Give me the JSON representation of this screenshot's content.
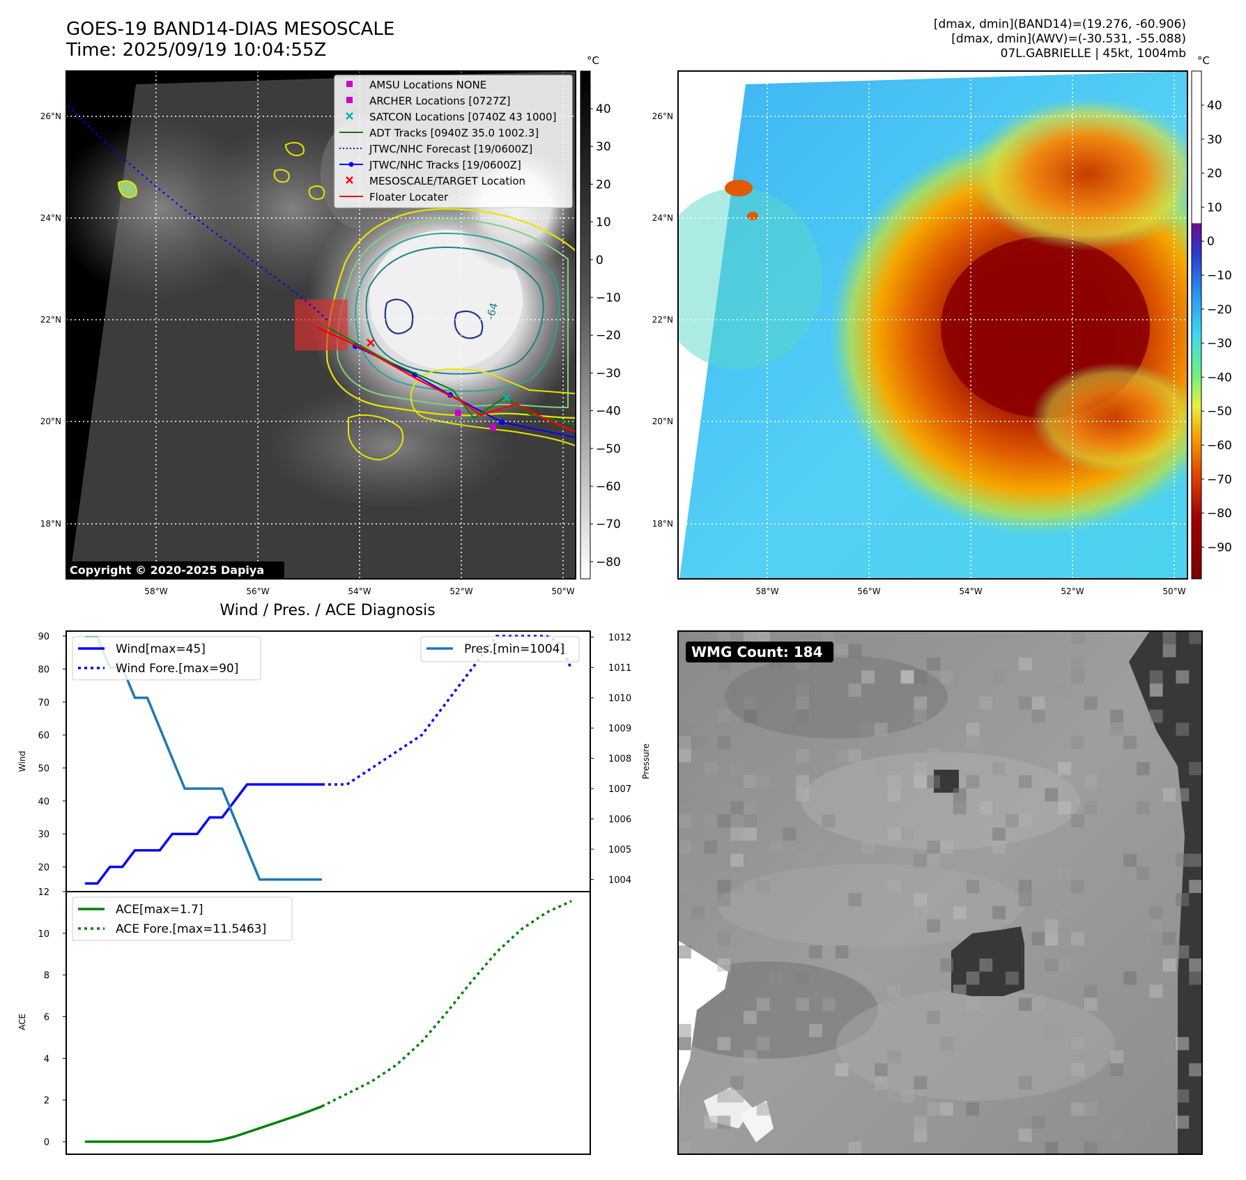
{
  "header": {
    "title_line1": "GOES-19 BAND14-DIAS MESOSCALE",
    "title_line2": "Time: 2025/09/19 10:04:55Z",
    "stats_line1": "[dmax, dmin](BAND14)=(19.276, -60.906)",
    "stats_line2": "[dmax, dmin](AWV)=(-30.531, -55.088)",
    "stats_line3": "07L.GABRIELLE | 45kt, 1004mb"
  },
  "map_axes": {
    "lat_labels": [
      "26°N",
      "24°N",
      "22°N",
      "20°N",
      "18°N"
    ],
    "lon_labels": [
      "58°W",
      "56°W",
      "54°W",
      "52°W",
      "50°W"
    ]
  },
  "ir_panel": {
    "legend": [
      {
        "label": "AMSU Locations NONE",
        "marker": "square",
        "color": "#cc00cc"
      },
      {
        "label": "ARCHER Locations [0727Z]",
        "marker": "square",
        "color": "#cc00cc"
      },
      {
        "label": "SATCON Locations [0740Z 43 1000]",
        "marker": "x",
        "color": "#00b3b3"
      },
      {
        "label": "ADT Tracks [0940Z 35.0 1002.3]",
        "marker": "line",
        "color": "#008000"
      },
      {
        "label": "JTWC/NHC Forecast [19/0600Z]",
        "marker": "dotted",
        "color": "#0000ff"
      },
      {
        "label": "JTWC/NHC Tracks [19/0600Z]",
        "marker": "line-dot",
        "color": "#0000ff"
      },
      {
        "label": "MESOSCALE/TARGET Location",
        "marker": "x",
        "color": "#ff0000"
      },
      {
        "label": "Floater Locater",
        "marker": "line",
        "color": "#ff0000"
      }
    ],
    "contour_label": "-64",
    "copyright": "Copyright © 2020-2025 Dapiya",
    "colorbar_unit": "°C",
    "colorbar_ticks": [
      "40",
      "30",
      "20",
      "10",
      "0",
      "−10",
      "−20",
      "−30",
      "−40",
      "−50",
      "−60",
      "−70",
      "−80"
    ]
  },
  "awv_panel": {
    "colorbar_unit": "°C",
    "colorbar_ticks": [
      "40",
      "30",
      "20",
      "10",
      "0",
      "−10",
      "−20",
      "−30",
      "−40",
      "−50",
      "−60",
      "−70",
      "−80",
      "−90"
    ]
  },
  "wmg_panel": {
    "label": "WMG Count: 184"
  },
  "chart_data": [
    {
      "type": "line",
      "title": "Wind / Pres. / ACE Diagnosis",
      "ylabel": "Wind",
      "ylabel_right": "Pressure",
      "ylim": [
        12.5,
        91.5
      ],
      "ylim_right": [
        1003.6,
        1012.2
      ],
      "yticks": [
        20,
        30,
        40,
        50,
        60,
        70,
        80,
        90
      ],
      "yticks_right": [
        1004,
        1005,
        1006,
        1007,
        1008,
        1009,
        1010,
        1011,
        1012
      ],
      "legend_left": [
        "Wind[max=45]",
        "Wind Fore.[max=90]"
      ],
      "legend_right": [
        "Pres.[min=1004]"
      ],
      "series": [
        {
          "name": "Wind[max=45]",
          "color": "#0000ff",
          "style": "solid",
          "x": [
            0,
            1,
            2,
            3,
            4,
            5,
            6,
            7,
            8,
            9,
            10,
            11,
            12,
            13,
            14,
            15,
            16,
            17,
            18,
            19
          ],
          "y": [
            15,
            15,
            20,
            20,
            25,
            25,
            25,
            30,
            30,
            30,
            35,
            35,
            40,
            45,
            45,
            45,
            45,
            45,
            45,
            45
          ]
        },
        {
          "name": "Wind Fore.[max=90]",
          "color": "#0000ff",
          "style": "dotted",
          "x": [
            19,
            21,
            23,
            25,
            27,
            29,
            31,
            33,
            35,
            37,
            38,
            39
          ],
          "y": [
            45,
            45,
            50,
            55,
            60,
            70,
            80,
            90,
            90,
            90,
            88,
            80
          ]
        },
        {
          "name": "Pres.[min=1004]",
          "color": "#1f77b4",
          "style": "solid",
          "axis": "right",
          "x": [
            0,
            1,
            2,
            3,
            4,
            5,
            6,
            7,
            8,
            9,
            10,
            11,
            12,
            13,
            14,
            15,
            16,
            17,
            18,
            19
          ],
          "y": [
            1012,
            1012,
            1011,
            1011,
            1010,
            1010,
            1009,
            1008,
            1007,
            1007,
            1007,
            1007,
            1006,
            1005,
            1004,
            1004,
            1004,
            1004,
            1004,
            1004
          ]
        }
      ]
    },
    {
      "type": "line",
      "ylabel": "ACE",
      "ylim": [
        -0.6,
        12
      ],
      "yticks": [
        0,
        2,
        4,
        6,
        8,
        10,
        12
      ],
      "legend": [
        "ACE[max=1.7]",
        "ACE Fore.[max=11.5463]"
      ],
      "series": [
        {
          "name": "ACE[max=1.7]",
          "color": "#008000",
          "style": "solid",
          "x": [
            0,
            2,
            4,
            6,
            8,
            10,
            11,
            12,
            13,
            14,
            15,
            16,
            17,
            18,
            19
          ],
          "y": [
            0,
            0,
            0,
            0,
            0,
            0,
            0.1,
            0.25,
            0.45,
            0.65,
            0.85,
            1.05,
            1.25,
            1.47,
            1.7
          ]
        },
        {
          "name": "ACE Fore.[max=11.5463]",
          "color": "#008000",
          "style": "dotted",
          "x": [
            19,
            21,
            23,
            25,
            27,
            29,
            31,
            33,
            35,
            37,
            39
          ],
          "y": [
            1.7,
            2.3,
            2.9,
            3.7,
            4.8,
            6.2,
            7.7,
            9.1,
            10.2,
            11.0,
            11.55
          ]
        }
      ]
    }
  ]
}
